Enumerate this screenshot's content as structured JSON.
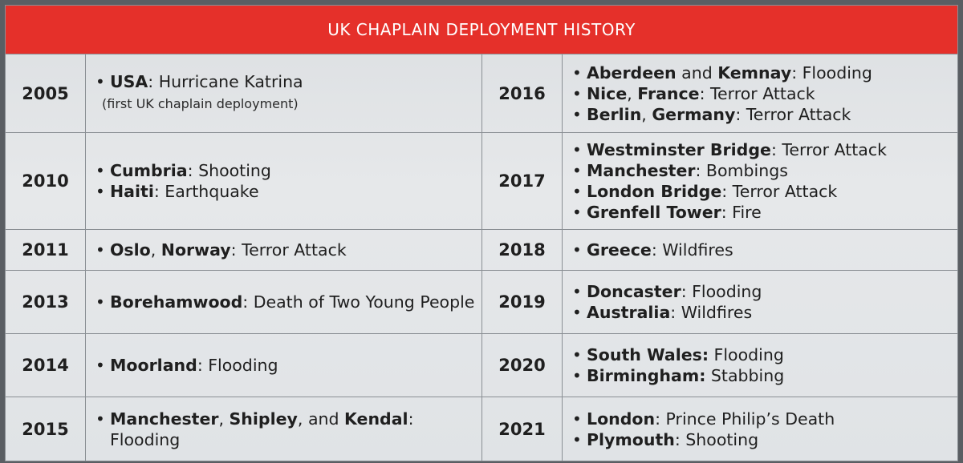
{
  "title": "UK CHAPLAIN DEPLOYMENT HISTORY",
  "colors": {
    "header": "#e5302a",
    "header_text": "#ffffff",
    "body_bg": "#e2e5e8",
    "border": "#8a8f94"
  },
  "rows": [
    {
      "left": {
        "year": "2005",
        "items": [
          {
            "bold": [
              "USA"
            ],
            "plain": ": Hurricane Katrina"
          }
        ],
        "note": "(first UK chaplain deployment)"
      },
      "right": {
        "year": "2016",
        "items": [
          {
            "b1": "Aberdeen",
            "m1": " and ",
            "b2": "Kemnay",
            "tail": ": Flooding"
          },
          {
            "b1": "Nice",
            "m1": ", ",
            "b2": "France",
            "tail": ": Terror Attack"
          },
          {
            "b1": "Berlin",
            "m1": ", ",
            "b2": "Germany",
            "tail": ": Terror Attack"
          }
        ]
      }
    },
    {
      "left": {
        "year": "2010",
        "items": [
          {
            "b1": "Cumbria",
            "tail": ": Shooting"
          },
          {
            "b1": "Haiti",
            "tail": ": Earthquake"
          }
        ]
      },
      "right": {
        "year": "2017",
        "items": [
          {
            "b1": "Westminster Bridge",
            "tail": ": Terror Attack"
          },
          {
            "b1": "Manchester",
            "tail": ": Bombings"
          },
          {
            "b1": "London Bridge",
            "tail": ": Terror Attack"
          },
          {
            "b1": "Grenfell Tower",
            "tail": ": Fire"
          }
        ]
      }
    },
    {
      "left": {
        "year": "2011",
        "items": [
          {
            "b1": "Oslo",
            "m1": ", ",
            "b2": "Norway",
            "tail": ": Terror Attack"
          }
        ]
      },
      "right": {
        "year": "2018",
        "items": [
          {
            "b1": "Greece",
            "tail": ": Wildfires"
          }
        ]
      }
    },
    {
      "left": {
        "year": "2013",
        "items": [
          {
            "b1": "Borehamwood",
            "tail": ": Death of Two Young People"
          }
        ]
      },
      "right": {
        "year": "2019",
        "items": [
          {
            "b1": "Doncaster",
            "tail": ": Flooding"
          },
          {
            "b1": "Australia",
            "tail": ": Wildfires"
          }
        ]
      }
    },
    {
      "left": {
        "year": "2014",
        "items": [
          {
            "b1": "Moorland",
            "tail": ": Flooding"
          }
        ]
      },
      "right": {
        "year": "2020",
        "items": [
          {
            "b1": "South Wales:",
            "tail": " Flooding"
          },
          {
            "b1": "Birmingham:",
            "tail": " Stabbing"
          }
        ]
      }
    },
    {
      "left": {
        "year": "2015",
        "items": [
          {
            "b1": "Manchester",
            "m1": ", ",
            "b2": "Shipley",
            "m2": ", and ",
            "b3": "Kendal",
            "tail": ": Flooding"
          }
        ]
      },
      "right": {
        "year": "2021",
        "items": [
          {
            "b1": "London",
            "tail": ": Prince Philip’s Death"
          },
          {
            "b1": "Plymouth",
            "tail": ": Shooting"
          }
        ]
      }
    }
  ]
}
